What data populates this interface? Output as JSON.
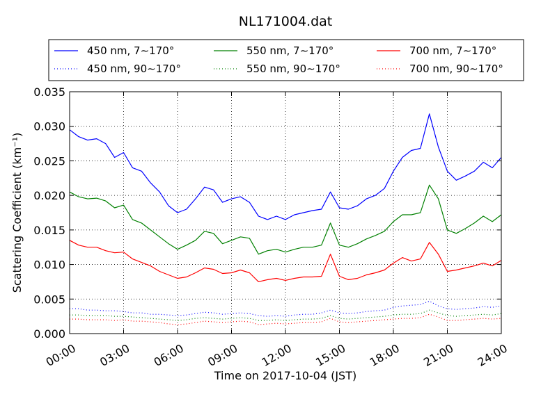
{
  "chart_data": {
    "type": "line",
    "title": "NL171004.dat",
    "xlabel": "Time on 2017-10-04 (JST)",
    "ylabel": "Scattering Coefficient (km⁻¹)",
    "xlim": [
      0,
      24
    ],
    "ylim": [
      0,
      0.035
    ],
    "grid": true,
    "legend_position": "top",
    "x_ticks": [
      {
        "value": 0,
        "label": "00:00"
      },
      {
        "value": 3,
        "label": "03:00"
      },
      {
        "value": 6,
        "label": "06:00"
      },
      {
        "value": 9,
        "label": "09:00"
      },
      {
        "value": 12,
        "label": "12:00"
      },
      {
        "value": 15,
        "label": "15:00"
      },
      {
        "value": 18,
        "label": "18:00"
      },
      {
        "value": 21,
        "label": "21:00"
      },
      {
        "value": 24,
        "label": "24:00"
      }
    ],
    "y_ticks": [
      {
        "value": 0,
        "label": "0.000"
      },
      {
        "value": 0.005,
        "label": "0.005"
      },
      {
        "value": 0.01,
        "label": "0.010"
      },
      {
        "value": 0.015,
        "label": "0.015"
      },
      {
        "value": 0.02,
        "label": "0.020"
      },
      {
        "value": 0.025,
        "label": "0.025"
      },
      {
        "value": 0.03,
        "label": "0.030"
      },
      {
        "value": 0.035,
        "label": "0.035"
      }
    ],
    "x": [
      0.0,
      0.5,
      1.0,
      1.5,
      2.0,
      2.5,
      3.0,
      3.5,
      4.0,
      4.5,
      5.0,
      5.5,
      6.0,
      6.5,
      7.0,
      7.5,
      8.0,
      8.5,
      9.0,
      9.5,
      10.0,
      10.5,
      11.0,
      11.5,
      12.0,
      12.5,
      13.0,
      13.5,
      14.0,
      14.5,
      15.0,
      15.5,
      16.0,
      16.5,
      17.0,
      17.5,
      18.0,
      18.5,
      19.0,
      19.5,
      20.0,
      20.5,
      21.0,
      21.5,
      22.0,
      22.5,
      23.0,
      23.5,
      24.0
    ],
    "series": [
      {
        "name": "450 nm, 7∼170°",
        "color": "#0000ff",
        "style": "solid",
        "values": [
          0.0295,
          0.0285,
          0.028,
          0.0282,
          0.0275,
          0.0255,
          0.0262,
          0.024,
          0.0235,
          0.0218,
          0.0205,
          0.0185,
          0.0175,
          0.018,
          0.0195,
          0.0212,
          0.0208,
          0.019,
          0.0195,
          0.0198,
          0.019,
          0.017,
          0.0165,
          0.017,
          0.0165,
          0.0172,
          0.0175,
          0.0178,
          0.018,
          0.0205,
          0.0182,
          0.018,
          0.0185,
          0.0195,
          0.02,
          0.021,
          0.0235,
          0.0255,
          0.0265,
          0.0268,
          0.0318,
          0.027,
          0.0235,
          0.0222,
          0.0228,
          0.0235,
          0.0248,
          0.024,
          0.0255
        ]
      },
      {
        "name": "550 nm, 7∼170°",
        "color": "#008000",
        "style": "solid",
        "values": [
          0.0205,
          0.0198,
          0.0195,
          0.0196,
          0.0192,
          0.0182,
          0.0186,
          0.0165,
          0.016,
          0.015,
          0.014,
          0.013,
          0.0122,
          0.0128,
          0.0135,
          0.0148,
          0.0145,
          0.013,
          0.0135,
          0.014,
          0.0138,
          0.0115,
          0.012,
          0.0122,
          0.0118,
          0.0122,
          0.0125,
          0.0125,
          0.0128,
          0.016,
          0.0128,
          0.0125,
          0.013,
          0.0137,
          0.0142,
          0.0148,
          0.0162,
          0.0172,
          0.0172,
          0.0175,
          0.0215,
          0.0195,
          0.015,
          0.0145,
          0.0152,
          0.016,
          0.017,
          0.0162,
          0.0172
        ]
      },
      {
        "name": "700 nm, 7∼170°",
        "color": "#ff0000",
        "style": "solid",
        "values": [
          0.0135,
          0.0128,
          0.0125,
          0.0125,
          0.012,
          0.0117,
          0.0118,
          0.0108,
          0.0103,
          0.0098,
          0.009,
          0.0085,
          0.008,
          0.0082,
          0.0088,
          0.0095,
          0.0093,
          0.0087,
          0.0088,
          0.0092,
          0.0088,
          0.0075,
          0.0078,
          0.008,
          0.0077,
          0.008,
          0.0082,
          0.0082,
          0.0083,
          0.0115,
          0.0083,
          0.0078,
          0.008,
          0.0085,
          0.0088,
          0.0092,
          0.0102,
          0.011,
          0.0105,
          0.0108,
          0.0132,
          0.0115,
          0.009,
          0.0092,
          0.0095,
          0.0098,
          0.0102,
          0.0098,
          0.0106
        ]
      },
      {
        "name": "450 nm, 90∼170°",
        "color": "#0000ff",
        "style": "dotted",
        "values": [
          0.0036,
          0.0036,
          0.0034,
          0.0034,
          0.0033,
          0.0033,
          0.0032,
          0.003,
          0.003,
          0.0028,
          0.0028,
          0.0027,
          0.0026,
          0.0027,
          0.0029,
          0.0031,
          0.003,
          0.0028,
          0.0029,
          0.003,
          0.0029,
          0.0026,
          0.0025,
          0.0026,
          0.0025,
          0.0027,
          0.0028,
          0.0028,
          0.003,
          0.0034,
          0.003,
          0.0029,
          0.003,
          0.0032,
          0.0033,
          0.0034,
          0.0038,
          0.004,
          0.0041,
          0.0042,
          0.0047,
          0.004,
          0.0036,
          0.0035,
          0.0036,
          0.0037,
          0.0039,
          0.0038,
          0.004
        ]
      },
      {
        "name": "550 nm, 90∼170°",
        "color": "#008000",
        "style": "dotted",
        "values": [
          0.0027,
          0.0027,
          0.0026,
          0.0026,
          0.0026,
          0.0025,
          0.0025,
          0.0024,
          0.0023,
          0.0022,
          0.0021,
          0.002,
          0.0019,
          0.002,
          0.0022,
          0.0023,
          0.0022,
          0.0021,
          0.0022,
          0.0023,
          0.0022,
          0.0019,
          0.0019,
          0.002,
          0.0019,
          0.002,
          0.0021,
          0.0021,
          0.0022,
          0.0026,
          0.0022,
          0.0021,
          0.0022,
          0.0023,
          0.0024,
          0.0025,
          0.0027,
          0.0028,
          0.0028,
          0.0029,
          0.0034,
          0.003,
          0.0026,
          0.0025,
          0.0026,
          0.0027,
          0.0028,
          0.0027,
          0.0029
        ]
      },
      {
        "name": "700 nm, 90∼170°",
        "color": "#ff0000",
        "style": "dotted",
        "values": [
          0.0021,
          0.0021,
          0.002,
          0.002,
          0.002,
          0.0019,
          0.002,
          0.0018,
          0.0018,
          0.0017,
          0.0016,
          0.0014,
          0.0013,
          0.0014,
          0.0016,
          0.0018,
          0.0017,
          0.0016,
          0.0017,
          0.0018,
          0.0017,
          0.0013,
          0.0014,
          0.0015,
          0.0014,
          0.0015,
          0.0016,
          0.0016,
          0.0017,
          0.0022,
          0.0017,
          0.0016,
          0.0017,
          0.0018,
          0.0019,
          0.002,
          0.0021,
          0.0022,
          0.0022,
          0.0023,
          0.0028,
          0.0024,
          0.0019,
          0.0019,
          0.002,
          0.0021,
          0.0022,
          0.0021,
          0.0022
        ]
      }
    ],
    "legend_order": [
      0,
      1,
      2,
      3,
      4,
      5
    ]
  }
}
